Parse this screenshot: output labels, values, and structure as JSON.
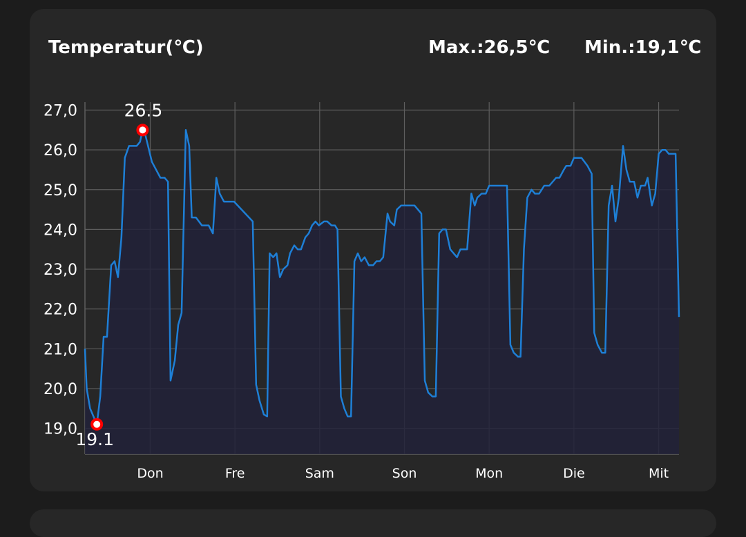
{
  "header": {
    "title": "Temperatur(℃)",
    "max_label": "Max.:26,5℃",
    "min_label": "Min.:19,1℃"
  },
  "chart_data": {
    "type": "area",
    "title": "Temperatur(℃)",
    "xlabel": "",
    "ylabel": "",
    "ylim": [
      18.35,
      27.2
    ],
    "xlim": [
      0.23,
      7.24
    ],
    "grid": true,
    "y_ticks": [
      {
        "value": 19,
        "label": "19,0"
      },
      {
        "value": 20,
        "label": "20,0"
      },
      {
        "value": 21,
        "label": "21,0"
      },
      {
        "value": 22,
        "label": "22,0"
      },
      {
        "value": 23,
        "label": "23,0"
      },
      {
        "value": 24,
        "label": "24,0"
      },
      {
        "value": 25,
        "label": "25,0"
      },
      {
        "value": 26,
        "label": "26,0"
      },
      {
        "value": 27,
        "label": "27,0"
      }
    ],
    "x_ticks": [
      {
        "value": 1,
        "label": "Don"
      },
      {
        "value": 2,
        "label": "Fre"
      },
      {
        "value": 3,
        "label": "Sam"
      },
      {
        "value": 4,
        "label": "Son"
      },
      {
        "value": 5,
        "label": "Mon"
      },
      {
        "value": 6,
        "label": "Die"
      },
      {
        "value": 7,
        "label": "Mit"
      }
    ],
    "colors": {
      "line": "#1e7fd6",
      "fill": "#22223a",
      "marker": "#ff0000",
      "grid": "#5e5e5e"
    },
    "max_point": {
      "x": 0.91,
      "y": 26.5,
      "label": "26.5"
    },
    "min_point": {
      "x": 0.37,
      "y": 19.1,
      "label": "19.1"
    },
    "series": [
      {
        "x": [
          0.23,
          0.25,
          0.29,
          0.37,
          0.41,
          0.45,
          0.49,
          0.54,
          0.58,
          0.62,
          0.66,
          0.7,
          0.75,
          0.84,
          0.88,
          0.91,
          0.94,
          1.02,
          1.12,
          1.17,
          1.21,
          1.24,
          1.29,
          1.33,
          1.37,
          1.42,
          1.46,
          1.49,
          1.54,
          1.61,
          1.69,
          1.74,
          1.78,
          1.82,
          1.87,
          1.99,
          2.21,
          2.25,
          2.29,
          2.34,
          2.38,
          2.41,
          2.45,
          2.49,
          2.53,
          2.57,
          2.62,
          2.65,
          2.7,
          2.74,
          2.78,
          2.83,
          2.87,
          2.91,
          2.95,
          2.99,
          3.05,
          3.09,
          3.14,
          3.18,
          3.21,
          3.25,
          3.29,
          3.33,
          3.37,
          3.41,
          3.45,
          3.49,
          3.53,
          3.58,
          3.63,
          3.67,
          3.71,
          3.75,
          3.8,
          3.83,
          3.88,
          3.91,
          3.96,
          4.12,
          4.2,
          4.24,
          4.28,
          4.33,
          4.37,
          4.41,
          4.45,
          4.49,
          4.54,
          4.62,
          4.66,
          4.74,
          4.79,
          4.83,
          4.86,
          4.91,
          4.96,
          5.0,
          5.21,
          5.25,
          5.29,
          5.34,
          5.37,
          5.41,
          5.45,
          5.5,
          5.54,
          5.59,
          5.65,
          5.71,
          5.79,
          5.83,
          5.88,
          5.91,
          5.96,
          6.0,
          6.09,
          6.16,
          6.21,
          6.24,
          6.28,
          6.33,
          6.37,
          6.41,
          6.45,
          6.49,
          6.53,
          6.58,
          6.62,
          6.66,
          6.71,
          6.75,
          6.79,
          6.84,
          6.87,
          6.92,
          6.96,
          7.0,
          7.04,
          7.08,
          7.12,
          7.2,
          7.24
        ],
        "y": [
          21.0,
          20.0,
          19.5,
          19.1,
          19.8,
          21.3,
          21.3,
          23.1,
          23.2,
          22.8,
          23.8,
          25.8,
          26.1,
          26.1,
          26.2,
          26.5,
          26.4,
          25.7,
          25.3,
          25.3,
          25.2,
          20.2,
          20.7,
          21.6,
          21.9,
          26.5,
          26.1,
          24.3,
          24.3,
          24.1,
          24.1,
          23.9,
          25.3,
          24.9,
          24.7,
          24.7,
          24.2,
          20.1,
          19.7,
          19.35,
          19.3,
          23.4,
          23.3,
          23.4,
          22.8,
          23.0,
          23.1,
          23.4,
          23.6,
          23.5,
          23.5,
          23.8,
          23.9,
          24.1,
          24.2,
          24.1,
          24.2,
          24.2,
          24.1,
          24.1,
          24.0,
          19.8,
          19.5,
          19.3,
          19.3,
          23.2,
          23.4,
          23.2,
          23.3,
          23.1,
          23.1,
          23.2,
          23.2,
          23.3,
          24.4,
          24.2,
          24.1,
          24.5,
          24.6,
          24.6,
          24.4,
          20.2,
          19.9,
          19.8,
          19.8,
          23.9,
          24.0,
          24.0,
          23.5,
          23.3,
          23.5,
          23.5,
          24.9,
          24.6,
          24.8,
          24.9,
          24.9,
          25.1,
          25.1,
          21.1,
          20.9,
          20.8,
          20.8,
          23.5,
          24.8,
          25.0,
          24.9,
          24.9,
          25.1,
          25.1,
          25.3,
          25.3,
          25.5,
          25.6,
          25.6,
          25.8,
          25.8,
          25.6,
          25.4,
          21.4,
          21.1,
          20.9,
          20.9,
          24.6,
          25.1,
          24.2,
          24.8,
          26.1,
          25.5,
          25.2,
          25.2,
          24.8,
          25.1,
          25.1,
          25.3,
          24.6,
          24.9,
          25.9,
          26.0,
          26.0,
          25.9,
          25.9,
          21.8
        ]
      }
    ]
  }
}
